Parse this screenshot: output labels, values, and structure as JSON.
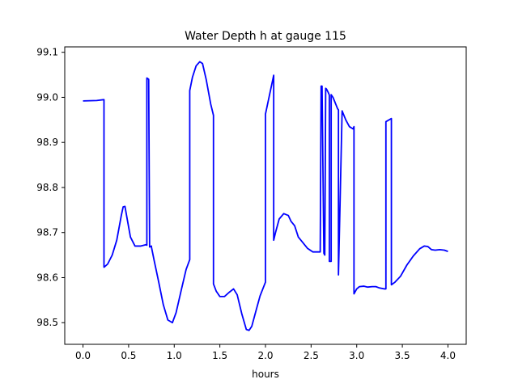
{
  "chart_data": {
    "type": "line",
    "title": "Water Depth h at gauge 115",
    "xlabel": "hours",
    "ylabel": "",
    "xlim": [
      -0.2,
      4.2
    ],
    "ylim": [
      98.452,
      99.112
    ],
    "grid": false,
    "legend": "none",
    "line_color": "#0000ff",
    "x_ticks": [
      0.0,
      0.5,
      1.0,
      1.5,
      2.0,
      2.5,
      3.0,
      3.5,
      4.0
    ],
    "x_tick_labels": [
      "0.0",
      "0.5",
      "1.0",
      "1.5",
      "2.0",
      "2.5",
      "3.0",
      "3.5",
      "4.0"
    ],
    "y_ticks": [
      98.5,
      98.6,
      98.7,
      98.8,
      98.9,
      99.0,
      99.1
    ],
    "y_tick_labels": [
      "98.5",
      "98.6",
      "98.7",
      "98.8",
      "98.9",
      "99.0",
      "99.1"
    ],
    "series": [
      {
        "x": [
          0.0,
          0.15,
          0.23,
          0.23,
          0.27,
          0.32,
          0.37,
          0.42,
          0.44,
          0.46,
          0.48,
          0.52,
          0.57,
          0.63,
          0.69,
          0.7,
          0.7,
          0.72,
          0.73,
          0.75,
          0.75,
          0.78,
          0.83,
          0.88,
          0.93,
          0.98,
          1.02,
          1.08,
          1.13,
          1.17,
          1.17,
          1.2,
          1.24,
          1.28,
          1.31,
          1.35,
          1.4,
          1.43,
          1.43,
          1.46,
          1.5,
          1.55,
          1.6,
          1.65,
          1.69,
          1.74,
          1.79,
          1.82,
          1.85,
          1.89,
          1.94,
          2.0,
          2.0,
          2.09,
          2.09,
          2.11,
          2.15,
          2.2,
          2.25,
          2.28,
          2.32,
          2.36,
          2.4,
          2.46,
          2.52,
          2.6,
          2.61,
          2.62,
          2.64,
          2.65,
          2.66,
          2.67,
          2.69,
          2.7,
          2.7,
          2.72,
          2.72,
          2.74,
          2.76,
          2.79,
          2.8,
          2.8,
          2.84,
          2.88,
          2.92,
          2.96,
          2.97,
          2.97,
          3.0,
          3.03,
          3.08,
          3.12,
          3.17,
          3.21,
          3.25,
          3.3,
          3.32,
          3.32,
          3.38,
          3.38,
          3.42,
          3.48,
          3.55,
          3.62,
          3.69,
          3.74,
          3.78,
          3.82,
          3.86,
          3.91,
          3.96,
          4.0
        ],
        "y": [
          98.992,
          98.993,
          98.995,
          98.623,
          98.63,
          98.65,
          98.683,
          98.738,
          98.757,
          98.758,
          98.735,
          98.69,
          98.67,
          98.67,
          98.673,
          98.672,
          99.043,
          99.04,
          98.668,
          98.67,
          98.668,
          98.638,
          98.59,
          98.54,
          98.506,
          98.5,
          98.522,
          98.575,
          98.618,
          98.64,
          99.015,
          99.045,
          99.07,
          99.079,
          99.075,
          99.04,
          98.985,
          98.96,
          98.586,
          98.57,
          98.558,
          98.558,
          98.567,
          98.575,
          98.562,
          98.52,
          98.485,
          98.483,
          98.492,
          98.522,
          98.559,
          98.59,
          98.963,
          99.049,
          98.683,
          98.7,
          98.73,
          98.742,
          98.738,
          98.725,
          98.715,
          98.69,
          98.68,
          98.665,
          98.657,
          98.657,
          99.025,
          99.025,
          98.654,
          98.65,
          99.02,
          99.018,
          99.01,
          99.005,
          98.636,
          98.636,
          99.006,
          99.0,
          98.99,
          98.975,
          98.972,
          98.606,
          98.97,
          98.95,
          98.935,
          98.93,
          98.935,
          98.564,
          98.575,
          98.58,
          98.581,
          98.579,
          98.58,
          98.58,
          98.577,
          98.575,
          98.575,
          98.946,
          98.953,
          98.584,
          98.59,
          98.603,
          98.628,
          98.648,
          98.664,
          98.67,
          98.669,
          98.662,
          98.661,
          98.662,
          98.661,
          98.658
        ]
      }
    ]
  }
}
